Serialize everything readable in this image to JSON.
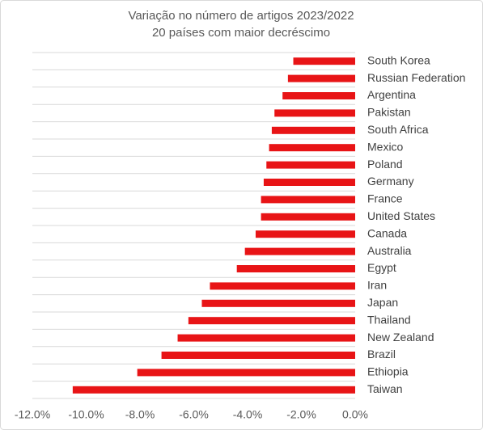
{
  "chart_data": {
    "type": "bar",
    "orientation": "horizontal",
    "title": "Variação no número de artigos 2023/2022",
    "subtitle": "20 países com maior decréscimo",
    "categories": [
      "South Korea",
      "Russian Federation",
      "Argentina",
      "Pakistan",
      "South Africa",
      "Mexico",
      "Poland",
      "Germany",
      "France",
      "United States",
      "Canada",
      "Australia",
      "Egypt",
      "Iran",
      "Japan",
      "Thailand",
      "New Zealand",
      "Brazil",
      "Ethiopia",
      "Taiwan"
    ],
    "values": [
      -2.3,
      -2.5,
      -2.7,
      -3.0,
      -3.1,
      -3.2,
      -3.3,
      -3.4,
      -3.5,
      -3.5,
      -3.7,
      -4.1,
      -4.4,
      -5.4,
      -5.7,
      -6.2,
      -6.6,
      -7.2,
      -8.1,
      -10.5
    ],
    "color": "#e81416",
    "xlim": [
      -12,
      0
    ],
    "xticks": [
      {
        "value": -12,
        "label": "-12.0%"
      },
      {
        "value": -10,
        "label": "-10.0%"
      },
      {
        "value": -8,
        "label": "-8.0%"
      },
      {
        "value": -6,
        "label": "-6.0%"
      },
      {
        "value": -4,
        "label": "-4.0%"
      },
      {
        "value": -2,
        "label": "-2.0%"
      },
      {
        "value": 0,
        "label": "0.0%"
      }
    ]
  }
}
